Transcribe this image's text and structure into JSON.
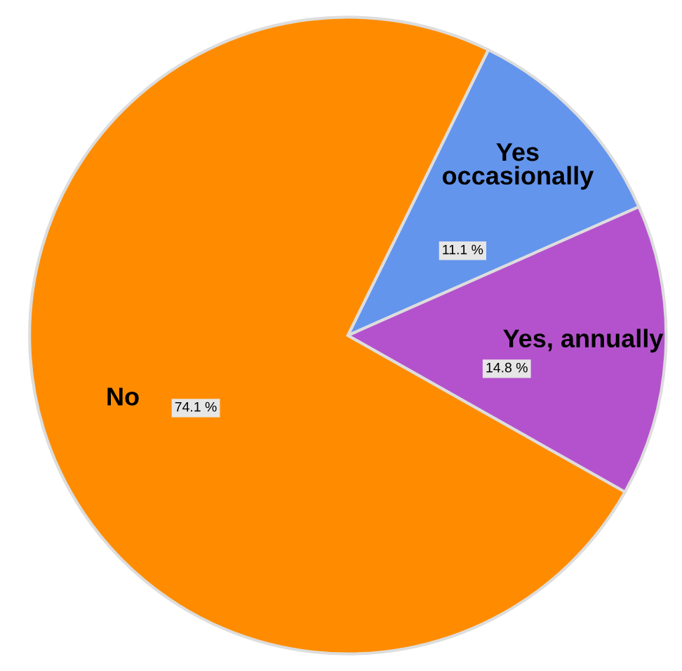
{
  "chart_data": {
    "type": "pie",
    "categories": [
      "Yes\noccasionally",
      "Yes, annually",
      "No"
    ],
    "values": [
      11.1,
      14.8,
      74.1
    ],
    "colors": [
      "#6495ed",
      "#b452cd",
      "#ff8c00"
    ],
    "value_labels": [
      "11.1 %",
      "14.8 %",
      "74.1 %"
    ]
  }
}
